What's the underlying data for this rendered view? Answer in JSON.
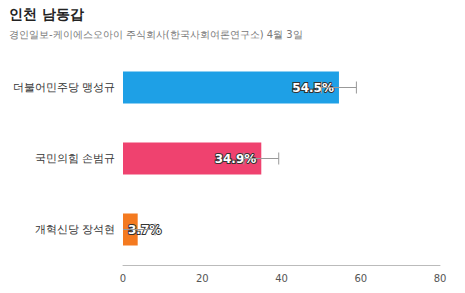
{
  "chart_data": {
    "type": "bar",
    "orientation": "horizontal",
    "title": "인천 남동갑",
    "subtitle": "경인일보-케이에스오아이 주식회사(한국사회여론연구소) 4월 3일",
    "categories": [
      "더불어민주당 맹성규",
      "국민의힘 손범규",
      "개혁신당 장석현"
    ],
    "values": [
      54.5,
      34.9,
      3.7
    ],
    "value_labels": [
      "54.5%",
      "34.9%",
      "3.7%"
    ],
    "errors": [
      4.4,
      4.4,
      4.4
    ],
    "colors": [
      "#1ea0e6",
      "#ef426f",
      "#f47a20"
    ],
    "xlim": [
      0,
      80
    ],
    "xticks": [
      0,
      20,
      40,
      60,
      80
    ],
    "grid": false,
    "data_labels": true
  }
}
